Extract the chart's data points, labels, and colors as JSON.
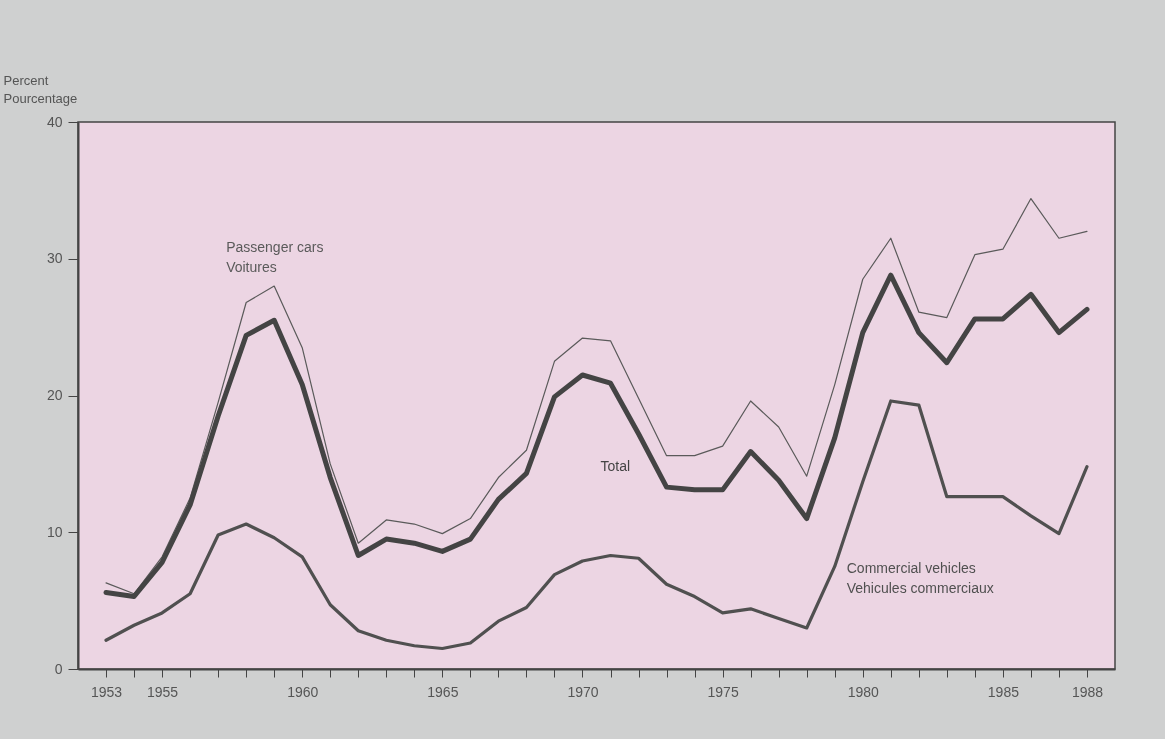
{
  "chart_data": {
    "type": "line",
    "ylabel": "Percent\nPourcentage",
    "x": [
      1953,
      1954,
      1955,
      1956,
      1957,
      1958,
      1959,
      1960,
      1961,
      1962,
      1963,
      1964,
      1965,
      1966,
      1967,
      1968,
      1969,
      1970,
      1971,
      1972,
      1973,
      1974,
      1975,
      1976,
      1977,
      1978,
      1979,
      1980,
      1981,
      1982,
      1983,
      1984,
      1985,
      1986,
      1987,
      1988
    ],
    "series": [
      {
        "name": "Passenger cars\nVoitures",
        "color": "#5a5a5a",
        "values": [
          6.3,
          5.5,
          8.2,
          12.5,
          19.5,
          26.8,
          28.0,
          23.5,
          15.0,
          9.2,
          10.9,
          10.6,
          9.9,
          11.0,
          14.0,
          16.0,
          22.5,
          24.2,
          24.0,
          19.8,
          15.6,
          15.6,
          16.3,
          19.6,
          17.7,
          14.1,
          20.8,
          28.5,
          31.5,
          26.1,
          25.7,
          30.3,
          30.7,
          34.4,
          31.5,
          32.0
        ]
      },
      {
        "name": "Total",
        "color": "#444444",
        "values": [
          5.6,
          5.3,
          7.8,
          12.0,
          18.5,
          24.4,
          25.5,
          20.8,
          14.0,
          8.3,
          9.5,
          9.2,
          8.6,
          9.5,
          12.4,
          14.3,
          19.9,
          21.5,
          20.9,
          17.2,
          13.3,
          13.1,
          13.1,
          15.9,
          13.8,
          11.0,
          16.9,
          24.6,
          28.8,
          24.6,
          22.4,
          25.6,
          25.6,
          27.4,
          24.6,
          26.3
        ]
      },
      {
        "name": "Commercial vehicles\nVehicules commerciaux",
        "color": "#505050",
        "values": [
          2.1,
          3.2,
          4.1,
          5.5,
          9.8,
          10.6,
          9.6,
          8.2,
          4.7,
          2.8,
          2.1,
          1.7,
          1.5,
          1.9,
          3.5,
          4.5,
          6.9,
          7.9,
          8.3,
          8.1,
          6.2,
          5.3,
          4.1,
          4.4,
          3.7,
          3.0,
          7.5,
          13.7,
          19.6,
          19.3,
          12.6,
          12.6,
          12.6,
          11.2,
          9.9,
          14.8
        ]
      }
    ],
    "xlim": [
      1952,
      1989
    ],
    "xticks": [
      1953,
      {
        "value": 1954,
        "label": null
      },
      1955,
      {
        "value": 1956,
        "label": null
      },
      {
        "value": 1957,
        "label": null
      },
      {
        "value": 1958,
        "label": null
      },
      {
        "value": 1959,
        "label": null
      },
      1960,
      {
        "value": 1961,
        "label": null
      },
      {
        "value": 1962,
        "label": null
      },
      {
        "value": 1963,
        "label": null
      },
      {
        "value": 1964,
        "label": null
      },
      1965,
      {
        "value": 1966,
        "label": null
      },
      {
        "value": 1967,
        "label": null
      },
      {
        "value": 1968,
        "label": null
      },
      {
        "value": 1969,
        "label": null
      },
      1970,
      {
        "value": 1971,
        "label": null
      },
      {
        "value": 1972,
        "label": null
      },
      {
        "value": 1973,
        "label": null
      },
      {
        "value": 1974,
        "label": null
      },
      1975,
      {
        "value": 1976,
        "label": null
      },
      {
        "value": 1977,
        "label": null
      },
      {
        "value": 1978,
        "label": null
      },
      {
        "value": 1979,
        "label": null
      },
      1980,
      {
        "value": 1981,
        "label": null
      },
      {
        "value": 1982,
        "label": null
      },
      {
        "value": 1983,
        "label": null
      },
      {
        "value": 1984,
        "label": null
      },
      1985,
      {
        "value": 1986,
        "label": null
      },
      {
        "value": 1987,
        "label": null
      },
      1988
    ],
    "ylim": [
      0,
      40
    ],
    "yticks": [
      0,
      10,
      20,
      30,
      40
    ],
    "grid": false
  }
}
